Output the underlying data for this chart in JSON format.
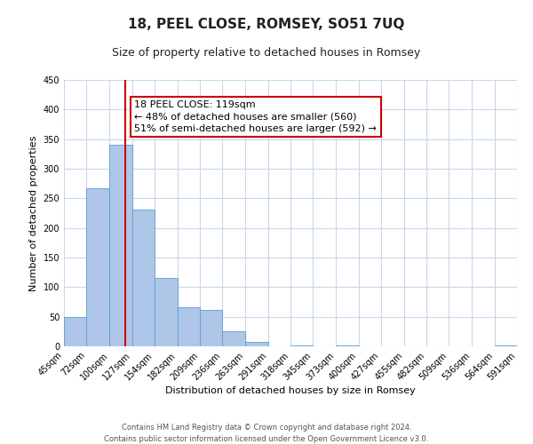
{
  "title": "18, PEEL CLOSE, ROMSEY, SO51 7UQ",
  "subtitle": "Size of property relative to detached houses in Romsey",
  "xlabel": "Distribution of detached houses by size in Romsey",
  "ylabel": "Number of detached properties",
  "bar_edges": [
    45,
    72,
    100,
    127,
    154,
    182,
    209,
    236,
    263,
    291,
    318,
    345,
    373,
    400,
    427,
    455,
    482,
    509,
    536,
    564,
    591
  ],
  "bar_heights": [
    50,
    267,
    340,
    231,
    115,
    66,
    62,
    25,
    7,
    0,
    2,
    0,
    1,
    0,
    0,
    0,
    0,
    0,
    0,
    2
  ],
  "bar_color": "#aec6e8",
  "bar_edge_color": "#5a9fd4",
  "vline_x": 119,
  "vline_color": "#cc0000",
  "annotation_line1": "18 PEEL CLOSE: 119sqm",
  "annotation_line2": "← 48% of detached houses are smaller (560)",
  "annotation_line3": "51% of semi-detached houses are larger (592) →",
  "annotation_box_color": "#ffffff",
  "annotation_box_edge": "#cc0000",
  "ylim": [
    0,
    450
  ],
  "xlim": [
    45,
    591
  ],
  "tick_labels": [
    "45sqm",
    "72sqm",
    "100sqm",
    "127sqm",
    "154sqm",
    "182sqm",
    "209sqm",
    "236sqm",
    "263sqm",
    "291sqm",
    "318sqm",
    "345sqm",
    "373sqm",
    "400sqm",
    "427sqm",
    "455sqm",
    "482sqm",
    "509sqm",
    "536sqm",
    "564sqm",
    "591sqm"
  ],
  "yticks": [
    0,
    50,
    100,
    150,
    200,
    250,
    300,
    350,
    400,
    450
  ],
  "footer_line1": "Contains HM Land Registry data © Crown copyright and database right 2024.",
  "footer_line2": "Contains public sector information licensed under the Open Government Licence v3.0.",
  "background_color": "#ffffff",
  "grid_color": "#c8d8ec",
  "title_fontsize": 11,
  "subtitle_fontsize": 9,
  "axis_label_fontsize": 8,
  "tick_fontsize": 7,
  "annotation_fontsize": 8,
  "footer_fontsize": 6
}
